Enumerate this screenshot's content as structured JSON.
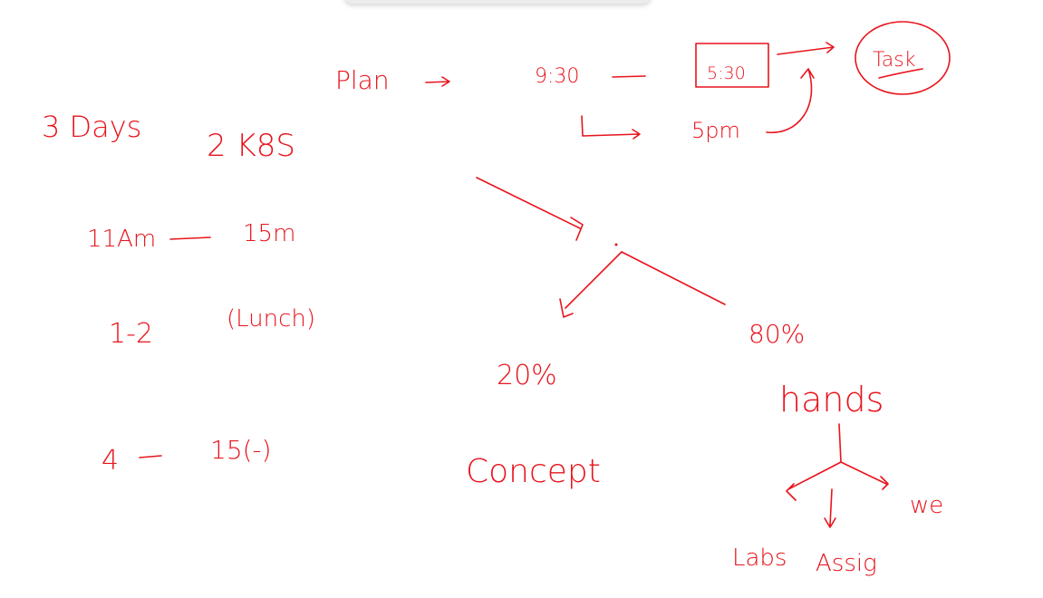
{
  "ink_color": "#e8141c",
  "notes": {
    "plan": "Plan",
    "time_start": "9:30",
    "time_end_boxed": "5:30",
    "task": "Task",
    "time_5pm": "5pm",
    "days": "3 Days",
    "k8s": "2 K8S",
    "morning": "11Am",
    "morning_break": "15m",
    "lunch_time": "1-2",
    "lunch": "(Lunch)",
    "afternoon": "4",
    "afternoon_break": "15(-)",
    "percent_concept": "20%",
    "concept": "Concept",
    "percent_hands": "80%",
    "hands": "hands",
    "labs": "Labs",
    "assignments": "Assig",
    "we": "we"
  }
}
